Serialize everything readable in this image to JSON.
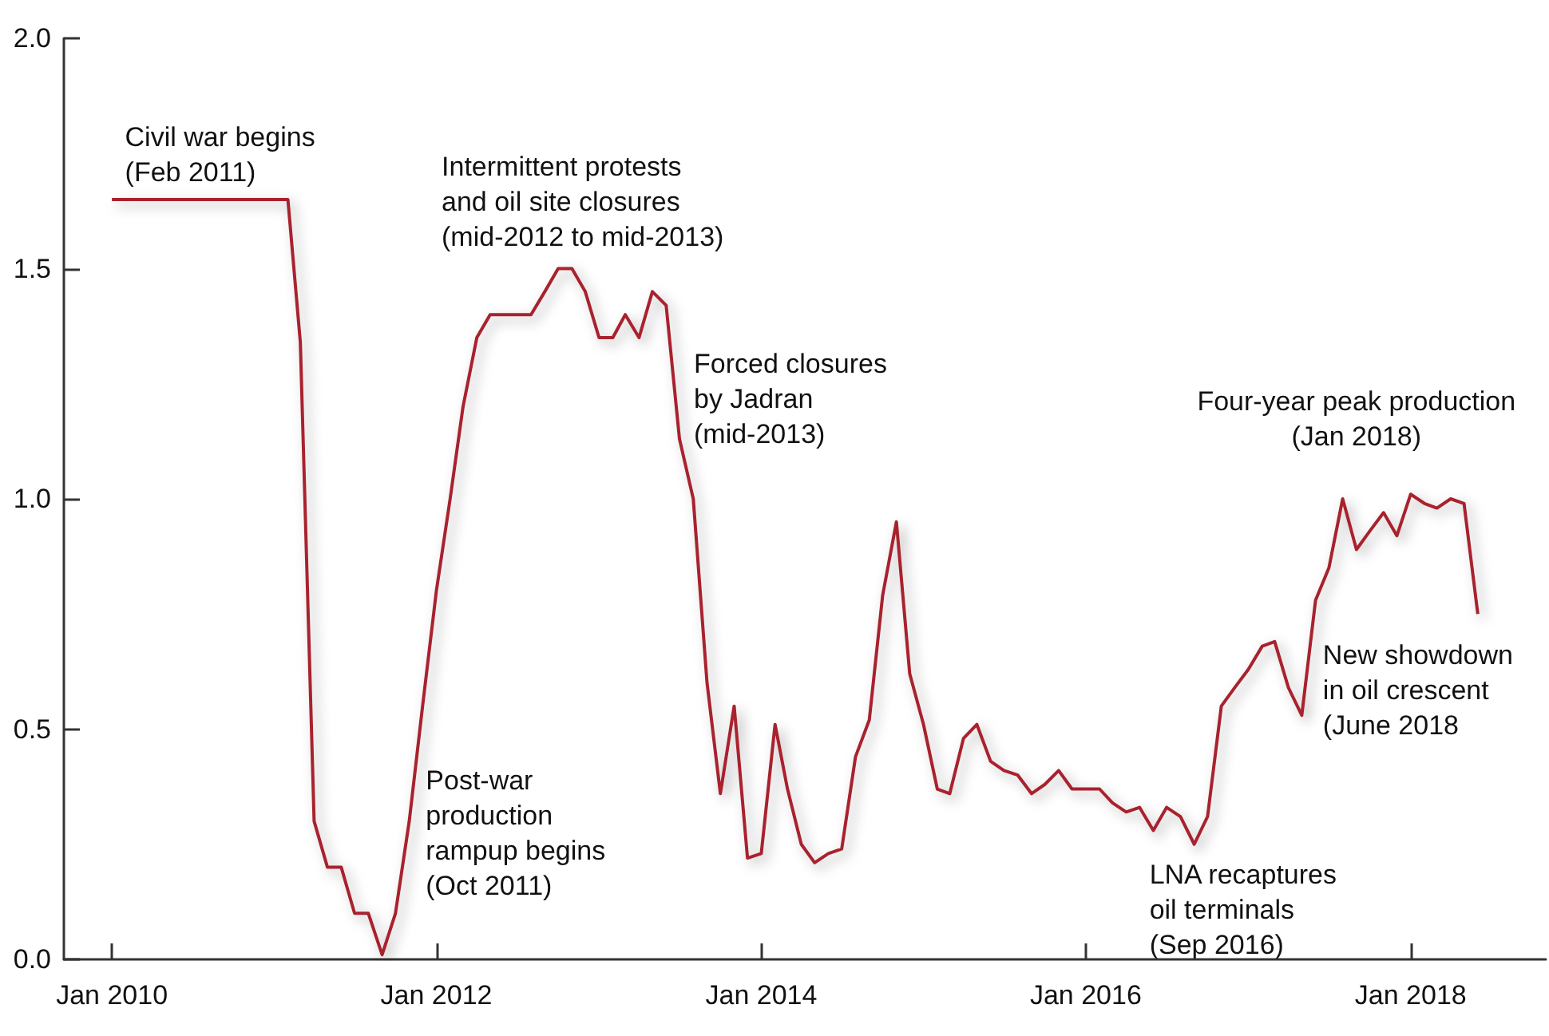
{
  "chart_data": {
    "type": "line",
    "x": [
      "2010-01",
      "2011-02",
      "2011-03",
      "2011-04",
      "2011-05",
      "2011-06",
      "2011-07",
      "2011-08",
      "2011-09",
      "2011-10",
      "2011-11",
      "2011-12",
      "2012-01",
      "2012-02",
      "2012-03",
      "2012-04",
      "2012-05",
      "2012-06",
      "2012-07",
      "2012-08",
      "2012-09",
      "2012-10",
      "2012-11",
      "2012-12",
      "2013-01",
      "2013-02",
      "2013-03",
      "2013-04",
      "2013-05",
      "2013-06",
      "2013-07",
      "2013-08",
      "2013-09",
      "2013-10",
      "2013-11",
      "2013-12",
      "2014-01",
      "2014-02",
      "2014-03",
      "2014-04",
      "2014-05",
      "2014-06",
      "2014-07",
      "2014-08",
      "2014-09",
      "2014-10",
      "2014-11",
      "2014-12",
      "2015-01",
      "2015-02",
      "2015-03",
      "2015-04",
      "2015-05",
      "2015-06",
      "2015-07",
      "2015-08",
      "2015-09",
      "2015-10",
      "2015-11",
      "2015-12",
      "2016-01",
      "2016-02",
      "2016-03",
      "2016-04",
      "2016-05",
      "2016-06",
      "2016-07",
      "2016-08",
      "2016-09",
      "2016-10",
      "2016-11",
      "2016-12",
      "2017-01",
      "2017-02",
      "2017-03",
      "2017-04",
      "2017-05",
      "2017-06",
      "2017-07",
      "2017-08",
      "2017-09",
      "2017-10",
      "2017-11",
      "2017-12",
      "2018-01",
      "2018-02",
      "2018-03",
      "2018-04",
      "2018-05",
      "2018-06"
    ],
    "series": [
      {
        "color": "#a8232f",
        "values": [
          1.65,
          1.65,
          1.34,
          0.3,
          0.2,
          0.2,
          0.1,
          0.1,
          0.01,
          0.1,
          0.3,
          0.55,
          0.8,
          1.0,
          1.2,
          1.35,
          1.4,
          1.4,
          1.4,
          1.4,
          1.45,
          1.5,
          1.5,
          1.45,
          1.35,
          1.35,
          1.4,
          1.35,
          1.45,
          1.42,
          1.13,
          1.0,
          0.6,
          0.36,
          0.55,
          0.22,
          0.23,
          0.51,
          0.37,
          0.25,
          0.21,
          0.23,
          0.24,
          0.44,
          0.52,
          0.79,
          0.95,
          0.62,
          0.51,
          0.37,
          0.36,
          0.48,
          0.51,
          0.43,
          0.41,
          0.4,
          0.36,
          0.38,
          0.41,
          0.37,
          0.37,
          0.37,
          0.34,
          0.32,
          0.33,
          0.28,
          0.33,
          0.31,
          0.25,
          0.31,
          0.55,
          0.59,
          0.63,
          0.68,
          0.69,
          0.59,
          0.53,
          0.78,
          0.85,
          1.0,
          0.89,
          0.93,
          0.97,
          0.92,
          1.01,
          0.99,
          0.98,
          1.0,
          0.99,
          0.75
        ]
      }
    ],
    "xlim": [
      "2009-09-15",
      "2018-11"
    ],
    "xticks": [
      {
        "value": "2010-01",
        "label": "Jan 2010"
      },
      {
        "value": "2012-01",
        "label": "Jan 2012"
      },
      {
        "value": "2014-01",
        "label": "Jan 2014"
      },
      {
        "value": "2016-01",
        "label": "Jan 2016"
      },
      {
        "value": "2018-01",
        "label": "Jan 2018"
      }
    ],
    "ylim": [
      0,
      2.0
    ],
    "yticks": [
      {
        "value": 0,
        "label": "0.0"
      },
      0.5,
      {
        "value": 1,
        "label": "1.0"
      },
      1.5,
      {
        "value": 2,
        "label": "2.0"
      }
    ],
    "grid": false,
    "marker": "none",
    "line_style": "solid",
    "annotations": [
      {
        "text": "Civil war begins\n(Feb 2011)",
        "x": "2011-02",
        "y": 1.65
      },
      {
        "text": "Intermittent protests\nand oil site closures\n(mid-2012 to mid-2013)",
        "x": "2012-10",
        "y": 1.5
      },
      {
        "text": "Forced closures\nby Jadran\n(mid-2013)",
        "x": "2013-07",
        "y": 1.13
      },
      {
        "text": "Post-war\nproduction\nrampup begins\n(Oct 2011)",
        "x": "2011-10",
        "y": 0.1
      },
      {
        "text": "LNA recaptures\noil terminals\n(Sep 2016)",
        "x": "2016-09",
        "y": 0.25
      },
      {
        "text": "Four-year peak production\n(Jan 2018)",
        "x": "2018-01",
        "y": 1.01
      },
      {
        "text": "New showdown\nin oil crescent\n(June 2018",
        "x": "2018-06",
        "y": 0.75
      }
    ]
  }
}
